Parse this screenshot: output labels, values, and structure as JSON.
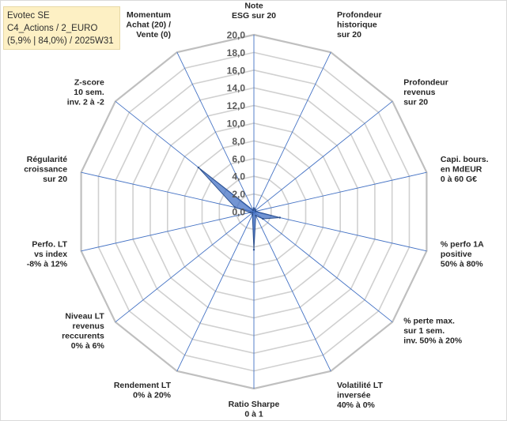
{
  "info_box": {
    "line1": "Evotec SE",
    "line2": "C4_Actions / 2_EURO",
    "line3": "(5,9% | 84,0%) / 2025W31"
  },
  "chart_data": {
    "type": "radar",
    "categories": [
      [
        "Note",
        "ESG sur 20"
      ],
      [
        "Profondeur",
        "historique",
        "sur 20"
      ],
      [
        "Profondeur",
        "revenus",
        "sur 20"
      ],
      [
        "Capi. bours.",
        "en MdEUR",
        "0 à 60 G€"
      ],
      [
        "% perfo 1A",
        "positive",
        "50% à 80%"
      ],
      [
        "% perte max.",
        "sur 1 sem.",
        "inv. 50% à 20%"
      ],
      [
        "Volatilité LT",
        "inversée",
        "40% à 0%"
      ],
      [
        "Ratio Sharpe",
        "0 à 1"
      ],
      [
        "Rendement LT",
        "0% à 20%"
      ],
      [
        "Niveau LT",
        "revenus",
        "reccurents",
        "0% à 6%"
      ],
      [
        "Perfo. LT",
        "vs index",
        "-8% à 12%"
      ],
      [
        "Régularité",
        "croissance",
        "sur 20"
      ],
      [
        "Z-score",
        "10 sem.",
        "inv. 2 à -2"
      ],
      [
        "Momentum",
        "Achat (20) /",
        "Vente (0)"
      ]
    ],
    "values": [
      0.4,
      0.3,
      0.2,
      0.2,
      3.0,
      1.3,
      0.5,
      4.3,
      0.4,
      0.2,
      0.4,
      2.2,
      8.0,
      0.2
    ],
    "ticks": [
      "0,0",
      "2,0",
      "4,0",
      "6,0",
      "8,0",
      "10,0",
      "12,0",
      "14,0",
      "16,0",
      "18,0",
      "20,0"
    ],
    "rmin": 0,
    "rmax": 20,
    "step": 2,
    "grid": true,
    "legend": "none",
    "colors": {
      "fill": "#4472c4",
      "stroke": "#2f528f",
      "spokes": "#4472c4",
      "grid": "#d0d0d0",
      "outer": "#bfbfbf"
    }
  }
}
